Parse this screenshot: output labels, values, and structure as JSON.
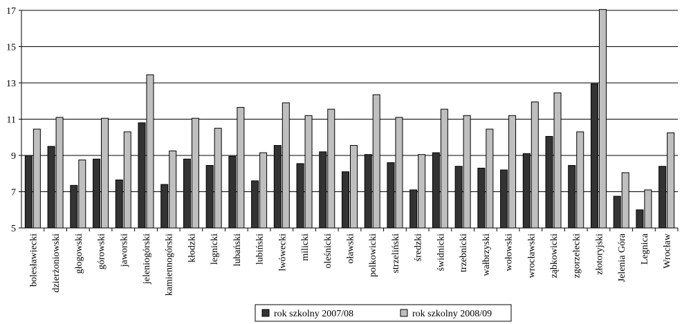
{
  "chart_data": {
    "type": "bar",
    "title": "",
    "xlabel": "",
    "ylabel": "",
    "ylim": [
      5,
      17
    ],
    "yticks": [
      5,
      7,
      9,
      11,
      13,
      15,
      17
    ],
    "grid": true,
    "legend_position": "bottom",
    "categories": [
      "bolesławiecki",
      "dzierżoniowski",
      "głogowski",
      "górowski",
      "jaworski",
      "jeleniogórski",
      "kamiennogórski",
      "kłodzki",
      "legnicki",
      "lubański",
      "lubiński",
      "lwówecki",
      "milicki",
      "oleśnicki",
      "oławski",
      "polkowicki",
      "strzeliński",
      "średzki",
      "świdnicki",
      "trzebnicki",
      "wałbrzyski",
      "wołowski",
      "wrocławski",
      "ząbkowicki",
      "zgorzelecki",
      "złotoryjski",
      "Jelenia Góra",
      "Legnica",
      "Wrocław"
    ],
    "series": [
      {
        "name": "rok szkolny 2007/08",
        "color": "#333333",
        "values": [
          9.0,
          9.5,
          7.35,
          8.8,
          7.65,
          10.8,
          7.4,
          8.8,
          8.45,
          8.95,
          7.6,
          9.55,
          8.55,
          9.2,
          8.1,
          9.05,
          8.6,
          7.1,
          9.15,
          8.4,
          8.3,
          8.2,
          9.1,
          10.05,
          8.45,
          12.95,
          6.75,
          6.0,
          8.4
        ]
      },
      {
        "name": "rok szkolny 2008/09",
        "color": "#bfbfbf",
        "values": [
          10.45,
          11.1,
          8.75,
          11.05,
          10.3,
          13.45,
          9.25,
          11.05,
          10.5,
          11.65,
          9.15,
          11.9,
          11.2,
          11.55,
          9.55,
          12.35,
          11.1,
          9.05,
          11.55,
          11.2,
          10.45,
          11.2,
          11.95,
          12.45,
          10.3,
          17.05,
          8.05,
          7.1,
          10.25
        ]
      }
    ]
  }
}
